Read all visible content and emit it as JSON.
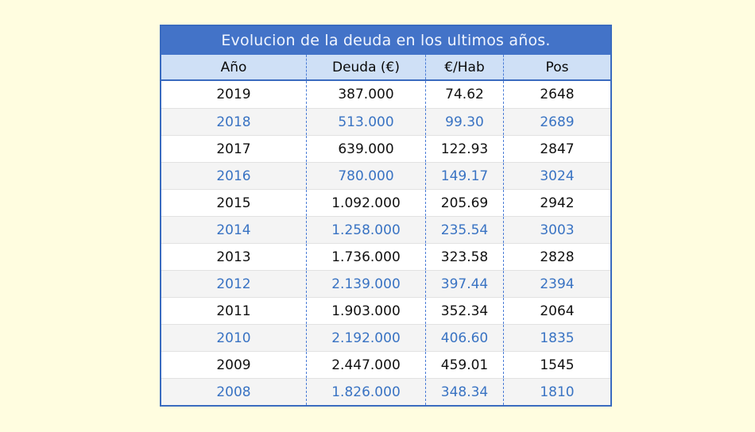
{
  "page": {
    "background_color": "#FFFDE0"
  },
  "colors": {
    "bg": "#FFFDE0",
    "title_bar": "#4373C8",
    "title_text": "#F0F5FF",
    "header_bg": "#CFE0F6",
    "border": "#3A6BBF",
    "dash": "#4A7CD6",
    "row_text": "#111111",
    "alt_row_bg": "#F4F4F4",
    "alt_row_text": "#3973C3",
    "row_divider": "#E2E2E2"
  },
  "chart_data": {
    "type": "table",
    "title": "Evolucion de la deuda en los ultimos años.",
    "columns": [
      "Año",
      "Deuda (€)",
      "€/Hab",
      "Pos"
    ],
    "rows": [
      [
        "2019",
        "387.000",
        "74.62",
        "2648"
      ],
      [
        "2018",
        "513.000",
        "99.30",
        "2689"
      ],
      [
        "2017",
        "639.000",
        "122.93",
        "2847"
      ],
      [
        "2016",
        "780.000",
        "149.17",
        "3024"
      ],
      [
        "2015",
        "1.092.000",
        "205.69",
        "2942"
      ],
      [
        "2014",
        "1.258.000",
        "235.54",
        "3003"
      ],
      [
        "2013",
        "1.736.000",
        "323.58",
        "2828"
      ],
      [
        "2012",
        "2.139.000",
        "397.44",
        "2394"
      ],
      [
        "2011",
        "1.903.000",
        "352.34",
        "2064"
      ],
      [
        "2010",
        "2.192.000",
        "406.60",
        "1835"
      ],
      [
        "2009",
        "2.447.000",
        "459.01",
        "1545"
      ],
      [
        "2008",
        "1.826.000",
        "348.34",
        "1810"
      ]
    ],
    "layout_hints": {
      "row_style_odd": "black text on white",
      "row_style_even": "blue text on light gray",
      "column_separators": "dashed blue vertical lines",
      "alignment": "center"
    }
  }
}
